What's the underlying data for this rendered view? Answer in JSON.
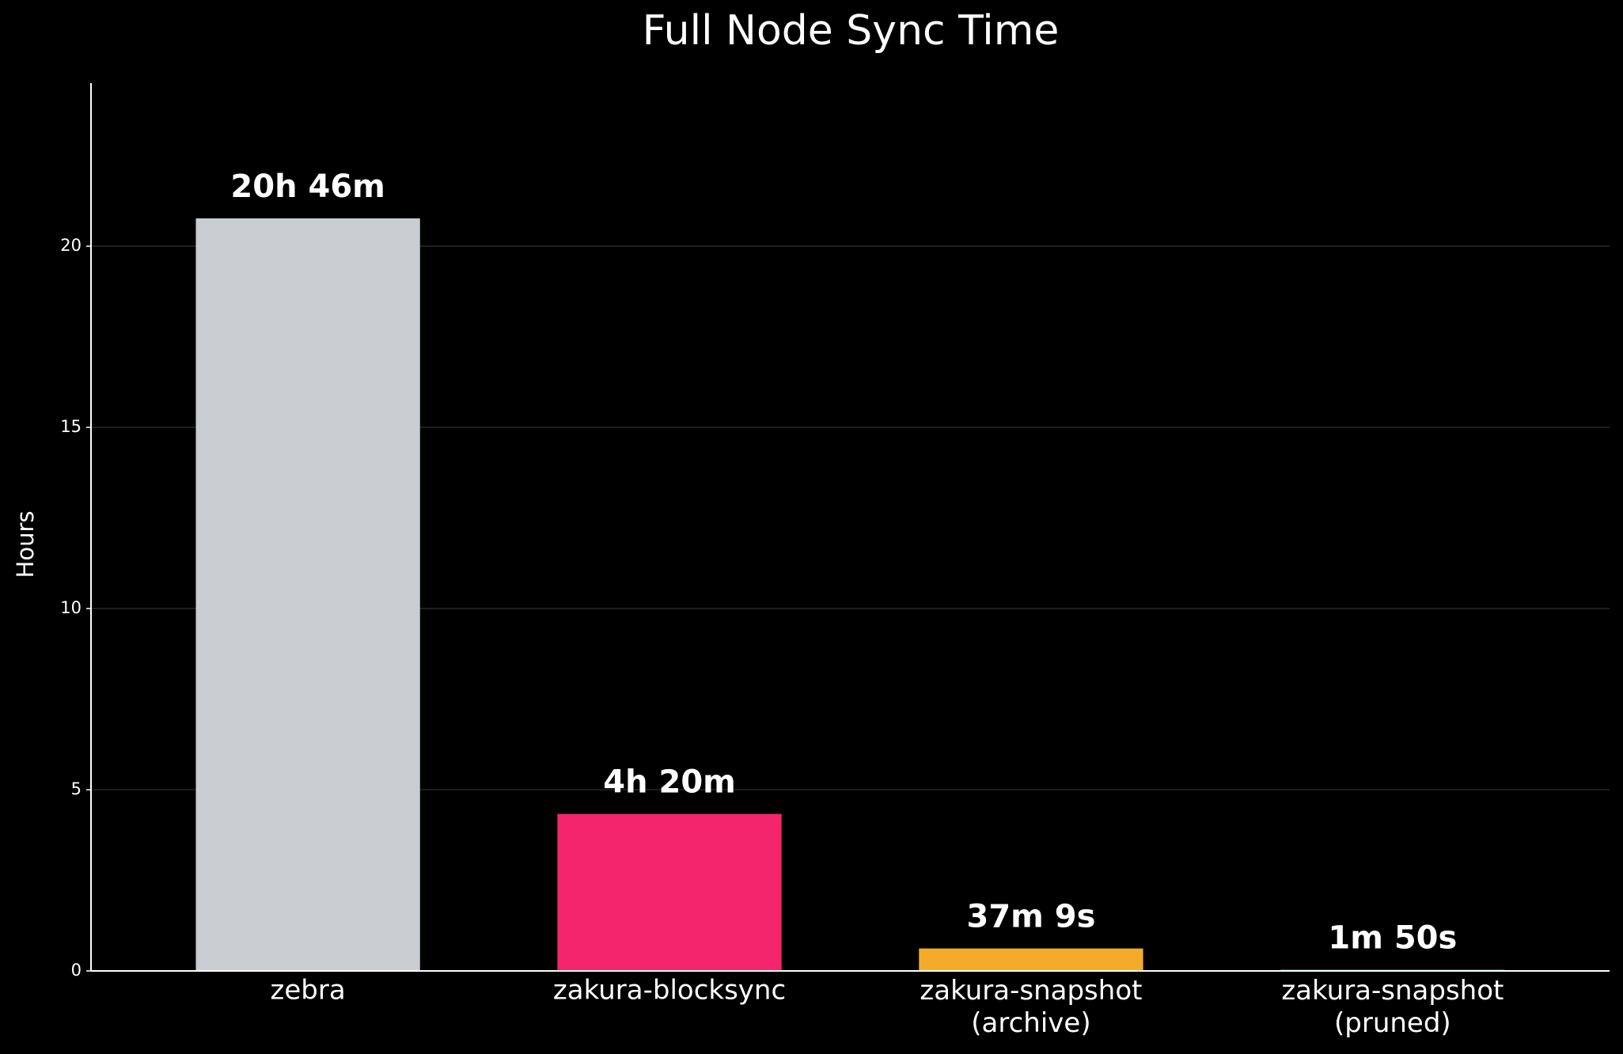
{
  "chart_data": {
    "type": "bar",
    "title": "Full Node Sync Time",
    "ylabel": "Hours",
    "categories": [
      "zebra",
      "zakura-blocksync",
      "zakura-snapshot\n(archive)",
      "zakura-snapshot\n(pruned)"
    ],
    "values": [
      20.7667,
      4.3333,
      0.6192,
      0.0306
    ],
    "value_labels": [
      "20h 46m",
      "4h 20m",
      "37m 9s",
      "1m 50s"
    ],
    "colors": [
      "#c9ccd1",
      "#f4256d",
      "#f5ab2a",
      "#3ddc84"
    ],
    "ylim": [
      0,
      24.5
    ],
    "yticks": [
      0,
      5,
      10,
      15,
      20
    ],
    "grid": true
  }
}
